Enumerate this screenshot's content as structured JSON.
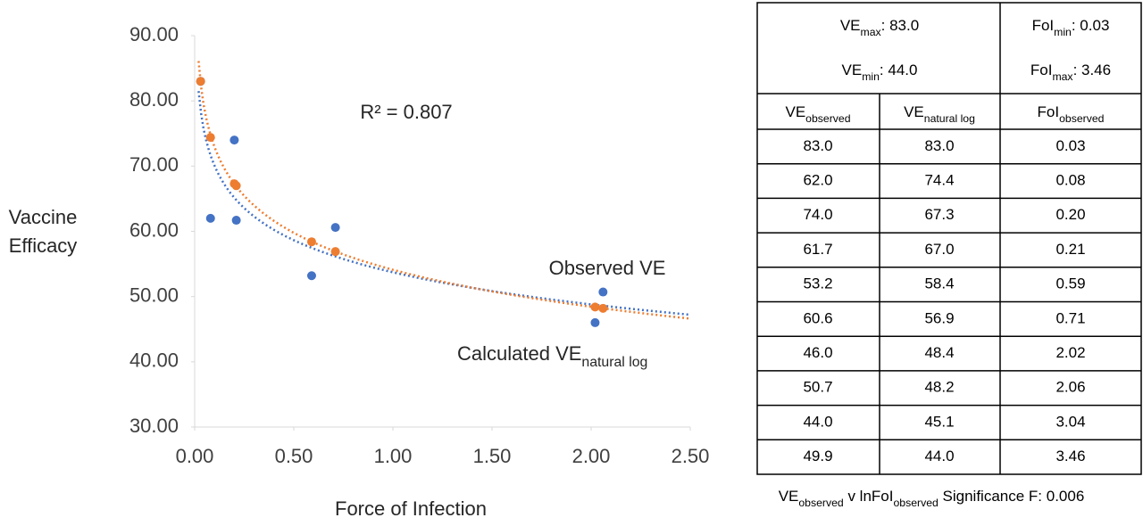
{
  "chart_data": {
    "type": "scatter",
    "y_label_lines": [
      "Vaccine",
      "Efficacy"
    ],
    "x_label": "Force of Infection",
    "annotation": "R² = 0.807",
    "xlim": [
      0,
      2.5
    ],
    "ylim": [
      30,
      90
    ],
    "xticks": [
      {
        "value": 0,
        "label": "0.00"
      },
      {
        "value": 0.5,
        "label": "0.50"
      },
      {
        "value": 1,
        "label": "1.00"
      },
      {
        "value": 1.5,
        "label": "1.50"
      },
      {
        "value": 2,
        "label": "2.00"
      },
      {
        "value": 2.5,
        "label": "2.50"
      }
    ],
    "yticks": [
      {
        "value": 30,
        "label": "30.00"
      },
      {
        "value": 40,
        "label": "40.00"
      },
      {
        "value": 50,
        "label": "50.00"
      },
      {
        "value": 60,
        "label": "60.00"
      },
      {
        "value": 70,
        "label": "70.00"
      },
      {
        "value": 80,
        "label": "80.00"
      },
      {
        "value": 90,
        "label": "90.00"
      }
    ],
    "trendline": "log",
    "series": [
      {
        "name": "Observed VE",
        "color": "#4472c4",
        "x": [
          0.03,
          0.08,
          0.2,
          0.21,
          0.59,
          0.71,
          2.02,
          2.06
        ],
        "values": [
          83.0,
          62.0,
          74.0,
          61.7,
          53.2,
          60.6,
          46.0,
          50.7
        ]
      },
      {
        "name": "Calculated VE",
        "name_sub": "natural log",
        "color": "#ed7d31",
        "x": [
          0.03,
          0.08,
          0.2,
          0.21,
          0.59,
          0.71,
          2.02,
          2.06
        ],
        "values": [
          83.0,
          74.4,
          67.3,
          67.0,
          58.4,
          56.9,
          48.4,
          48.2
        ]
      }
    ]
  },
  "table": {
    "summary": [
      [
        {
          "base": "VE",
          "sub": "max",
          "rest": ": 83.0"
        },
        {
          "base": "VE",
          "sub": "min",
          "rest": ": 44.0"
        }
      ],
      [
        {
          "base": "FoI",
          "sub": "min",
          "rest": ": 0.03"
        },
        {
          "base": "FoI",
          "sub": "max",
          "rest": ": 3.46"
        }
      ]
    ],
    "columns": [
      {
        "base": "VE",
        "sub": "observed"
      },
      {
        "base": "VE",
        "sub": "natural log"
      },
      {
        "base": "FoI",
        "sub": "observed"
      }
    ],
    "rows": [
      [
        "83.0",
        "83.0",
        "0.03"
      ],
      [
        "62.0",
        "74.4",
        "0.08"
      ],
      [
        "74.0",
        "67.3",
        "0.20"
      ],
      [
        "61.7",
        "67.0",
        "0.21"
      ],
      [
        "53.2",
        "58.4",
        "0.59"
      ],
      [
        "60.6",
        "56.9",
        "0.71"
      ],
      [
        "46.0",
        "48.4",
        "2.02"
      ],
      [
        "50.7",
        "48.2",
        "2.06"
      ],
      [
        "44.0",
        "45.1",
        "3.04"
      ],
      [
        "49.9",
        "44.0",
        "3.46"
      ]
    ],
    "footnote": [
      {
        "base": "VE",
        "sub": "observed"
      },
      {
        "base": " v lnFoI",
        "sub": "observed"
      },
      {
        "base": " Significance F: 0.006"
      }
    ]
  }
}
